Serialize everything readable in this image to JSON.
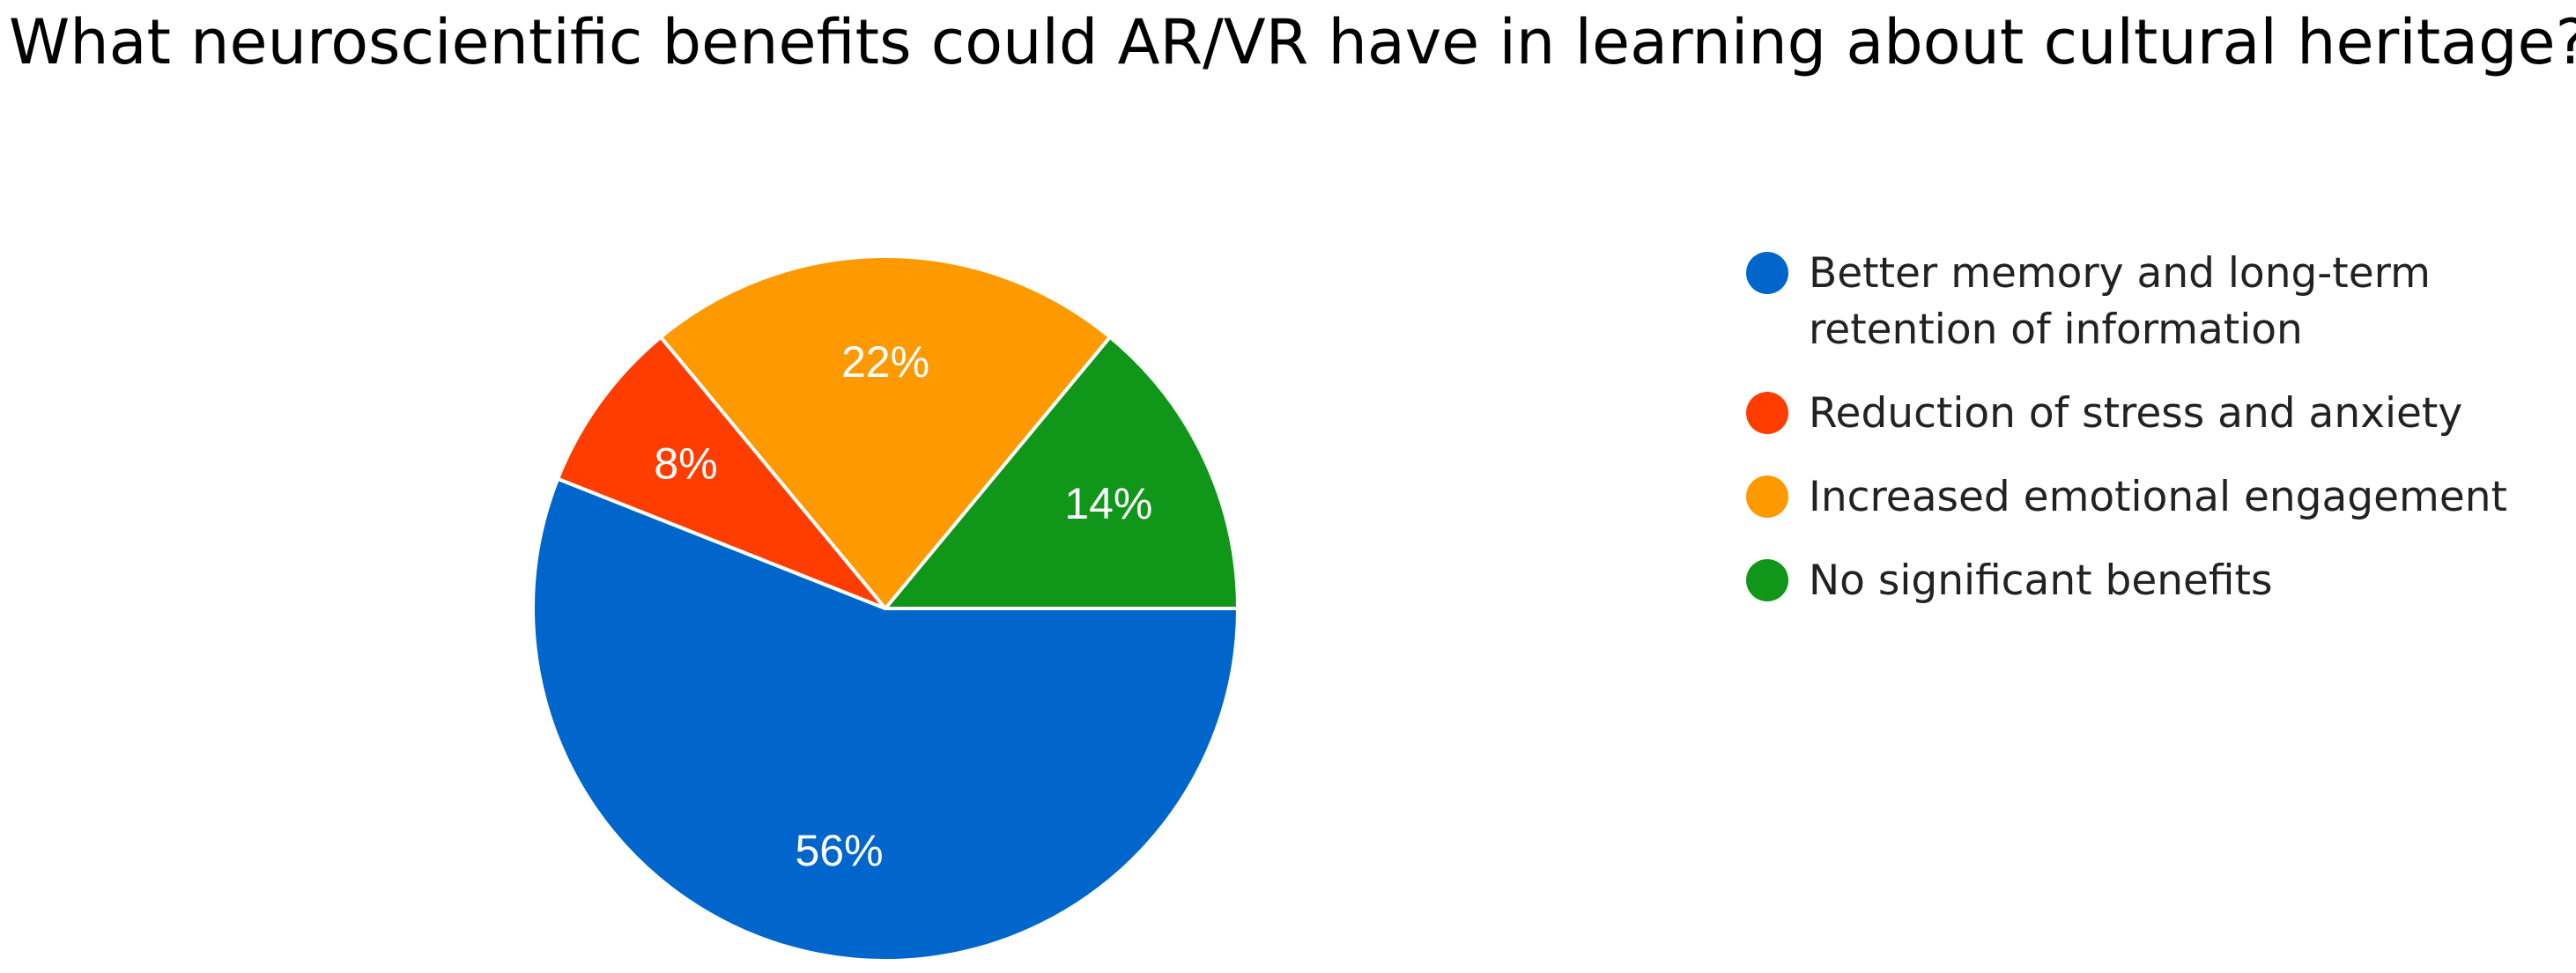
{
  "chart_data": {
    "type": "pie",
    "title": "What neuroscientific benefits could AR/VR have in learning about cultural heritage?",
    "slices": [
      {
        "label": "Better memory and long-term retention of information",
        "legend_lines": [
          "Better memory and long-term",
          "retention of information"
        ],
        "value": 56,
        "display": "56%",
        "color": "#0066CC"
      },
      {
        "label": "Reduction of stress and anxiety",
        "legend_lines": [
          "Reduction of stress and anxiety"
        ],
        "value": 8,
        "display": "8%",
        "color": "#FF3D00"
      },
      {
        "label": "Increased emotional engagement",
        "legend_lines": [
          "Increased emotional engagement"
        ],
        "value": 22,
        "display": "22%",
        "color": "#FF9900"
      },
      {
        "label": "No significant benefits",
        "legend_lines": [
          "No significant benefits"
        ],
        "value": 14,
        "display": "14%",
        "color": "#109618"
      }
    ],
    "legend_position": "right"
  }
}
